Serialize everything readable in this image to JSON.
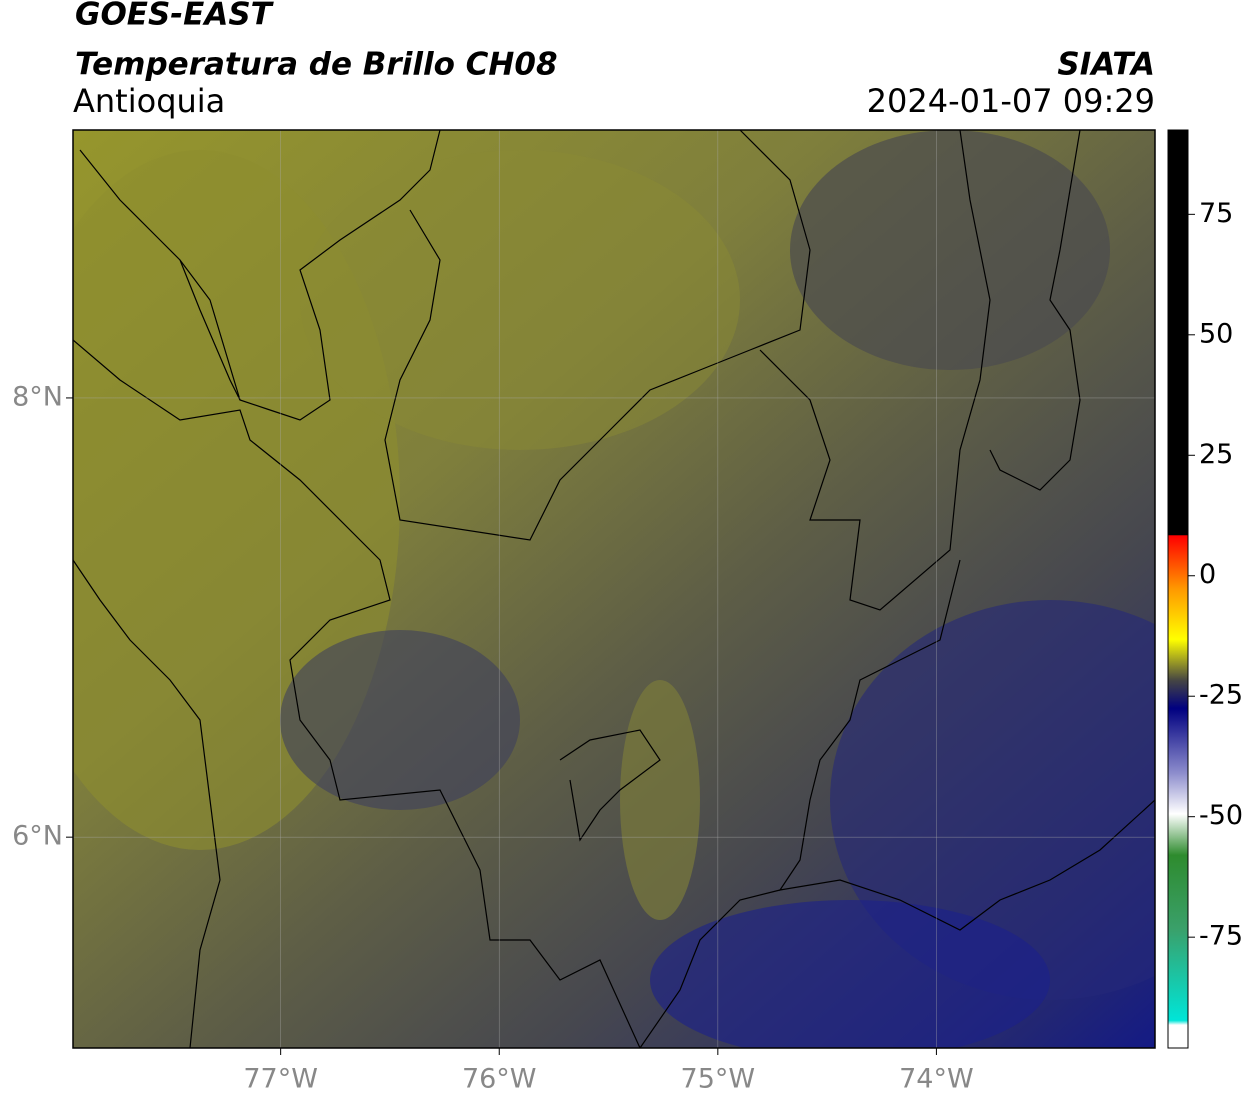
{
  "header": {
    "title": "GOES-EAST",
    "subtitle": "Temperatura de Brillo CH08",
    "region": "Antioquia",
    "source": "SIATA",
    "datetime": "2024-01-07 09:29"
  },
  "map": {
    "xlim": [
      -77.95,
      -73.0
    ],
    "ylim": [
      5.04,
      9.22
    ],
    "xticks": [
      {
        "value": -77,
        "label": "77°W"
      },
      {
        "value": -76,
        "label": "76°W"
      },
      {
        "value": -75,
        "label": "75°W"
      },
      {
        "value": -74,
        "label": "74°W"
      }
    ],
    "yticks": [
      {
        "value": 6,
        "label": "6°N"
      },
      {
        "value": 8,
        "label": "8°N"
      }
    ],
    "grid": true
  },
  "colorbar": {
    "lim": [
      -98,
      92.5
    ],
    "ticks": [
      75,
      50,
      25,
      0,
      -25,
      -50,
      -75
    ]
  }
}
